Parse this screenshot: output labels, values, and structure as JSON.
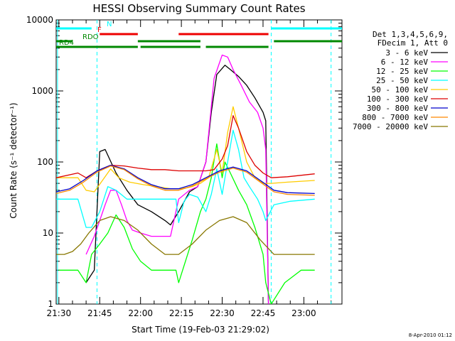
{
  "chart_data": {
    "type": "line",
    "title": "HESSI Observing Summary Count Rates",
    "xlabel": "Start Time (19-Feb-03 21:29:02)",
    "ylabel": "Count Rate (s⁻¹ detector⁻¹)",
    "x_unit": "minutes after 21:29:02",
    "xlim": [
      0,
      105
    ],
    "ylim": [
      1,
      10000
    ],
    "y_scale": "log",
    "x_tick_labels": [
      "21:30",
      "21:45",
      "22:00",
      "22:15",
      "22:30",
      "22:45",
      "23:00"
    ],
    "x_tick_values": [
      1,
      16,
      31,
      46,
      61,
      76,
      91
    ],
    "y_tick_labels": [
      "1",
      "10",
      "100",
      "1000",
      "10000"
    ],
    "y_tick_values": [
      1,
      10,
      100,
      1000,
      10000
    ],
    "legend_header": [
      "Det 1,3,4,5,6,9,",
      "FDecim 1, Att 0"
    ],
    "legend_position": "right",
    "series": [
      {
        "name": "3 - 6 keV",
        "color": "#000000",
        "points": [
          [
            11,
            2
          ],
          [
            14,
            3
          ],
          [
            16,
            140
          ],
          [
            18,
            150
          ],
          [
            22,
            70
          ],
          [
            26,
            40
          ],
          [
            30,
            25
          ],
          [
            35,
            20
          ],
          [
            40,
            15
          ],
          [
            42,
            13
          ],
          [
            45,
            20
          ],
          [
            49,
            38
          ],
          [
            52,
            45
          ],
          [
            55,
            100
          ],
          [
            57,
            500
          ],
          [
            59,
            1700
          ],
          [
            62,
            2300
          ],
          [
            64,
            2000
          ],
          [
            67,
            1600
          ],
          [
            70,
            1200
          ],
          [
            73,
            800
          ],
          [
            76,
            500
          ],
          [
            77,
            380
          ],
          [
            78,
            0.5
          ]
        ]
      },
      {
        "name": "6 - 12 keV",
        "color": "#ff00ff",
        "points": [
          [
            11,
            5
          ],
          [
            14,
            9
          ],
          [
            16,
            15
          ],
          [
            18,
            25
          ],
          [
            20,
            40
          ],
          [
            22,
            40
          ],
          [
            24,
            25
          ],
          [
            26,
            15
          ],
          [
            28,
            11
          ],
          [
            31,
            10
          ],
          [
            35,
            9
          ],
          [
            40,
            9
          ],
          [
            42,
            9
          ],
          [
            45,
            30
          ],
          [
            49,
            40
          ],
          [
            52,
            45
          ],
          [
            55,
            100
          ],
          [
            58,
            1500
          ],
          [
            61,
            3200
          ],
          [
            63,
            3000
          ],
          [
            65,
            2000
          ],
          [
            68,
            1200
          ],
          [
            71,
            700
          ],
          [
            74,
            500
          ],
          [
            76,
            300
          ],
          [
            77,
            150
          ],
          [
            78,
            0.5
          ]
        ]
      },
      {
        "name": "12 - 25 keV",
        "color": "#00ff00",
        "points": [
          [
            1,
            3
          ],
          [
            8,
            3
          ],
          [
            11,
            2
          ],
          [
            13,
            5
          ],
          [
            16,
            7
          ],
          [
            19,
            10
          ],
          [
            22,
            18
          ],
          [
            25,
            12
          ],
          [
            28,
            6
          ],
          [
            31,
            4
          ],
          [
            35,
            3
          ],
          [
            40,
            3
          ],
          [
            44,
            3
          ],
          [
            45,
            2
          ],
          [
            50,
            8
          ],
          [
            53,
            20
          ],
          [
            55,
            30
          ],
          [
            57,
            60
          ],
          [
            59,
            180
          ],
          [
            61,
            60
          ],
          [
            62,
            100
          ],
          [
            64,
            70
          ],
          [
            67,
            40
          ],
          [
            70,
            25
          ],
          [
            73,
            12
          ],
          [
            76,
            5
          ],
          [
            77,
            2
          ],
          [
            79,
            1
          ],
          [
            84,
            2
          ],
          [
            90,
            3
          ],
          [
            95,
            3
          ]
        ]
      },
      {
        "name": "25 - 50 keV",
        "color": "#00ffff",
        "points": [
          [
            0,
            30
          ],
          [
            8,
            30
          ],
          [
            11,
            12
          ],
          [
            13,
            12
          ],
          [
            16,
            20
          ],
          [
            19,
            45
          ],
          [
            22,
            40
          ],
          [
            26,
            30
          ],
          [
            30,
            30
          ],
          [
            35,
            30
          ],
          [
            40,
            30
          ],
          [
            44,
            30
          ],
          [
            45,
            14
          ],
          [
            47,
            28
          ],
          [
            49,
            35
          ],
          [
            52,
            32
          ],
          [
            55,
            20
          ],
          [
            57,
            35
          ],
          [
            59,
            80
          ],
          [
            61,
            35
          ],
          [
            63,
            100
          ],
          [
            65,
            280
          ],
          [
            67,
            150
          ],
          [
            69,
            60
          ],
          [
            71,
            45
          ],
          [
            74,
            30
          ],
          [
            76,
            20
          ],
          [
            77,
            15
          ],
          [
            80,
            25
          ],
          [
            86,
            28
          ],
          [
            95,
            30
          ]
        ]
      },
      {
        "name": "50 - 100 keV",
        "color": "#ffcc00",
        "points": [
          [
            0,
            60
          ],
          [
            8,
            60
          ],
          [
            11,
            40
          ],
          [
            14,
            38
          ],
          [
            17,
            55
          ],
          [
            20,
            80
          ],
          [
            23,
            60
          ],
          [
            27,
            52
          ],
          [
            32,
            48
          ],
          [
            37,
            45
          ],
          [
            42,
            42
          ],
          [
            46,
            42
          ],
          [
            50,
            45
          ],
          [
            53,
            50
          ],
          [
            56,
            60
          ],
          [
            59,
            150
          ],
          [
            61,
            70
          ],
          [
            63,
            260
          ],
          [
            65,
            600
          ],
          [
            67,
            300
          ],
          [
            70,
            100
          ],
          [
            73,
            60
          ],
          [
            76,
            50
          ],
          [
            79,
            50
          ],
          [
            85,
            52
          ],
          [
            95,
            55
          ]
        ]
      },
      {
        "name": "100 - 300 keV",
        "color": "#dd0000",
        "points": [
          [
            0,
            60
          ],
          [
            8,
            70
          ],
          [
            11,
            60
          ],
          [
            15,
            75
          ],
          [
            20,
            90
          ],
          [
            25,
            88
          ],
          [
            30,
            82
          ],
          [
            35,
            78
          ],
          [
            40,
            78
          ],
          [
            45,
            75
          ],
          [
            50,
            75
          ],
          [
            55,
            75
          ],
          [
            58,
            78
          ],
          [
            61,
            110
          ],
          [
            63,
            170
          ],
          [
            65,
            450
          ],
          [
            67,
            300
          ],
          [
            70,
            140
          ],
          [
            73,
            90
          ],
          [
            76,
            70
          ],
          [
            79,
            60
          ],
          [
            85,
            62
          ],
          [
            95,
            68
          ]
        ]
      },
      {
        "name": "300 - 800 keV",
        "color": "#0000cc",
        "points": [
          [
            0,
            38
          ],
          [
            5,
            42
          ],
          [
            10,
            55
          ],
          [
            15,
            75
          ],
          [
            20,
            90
          ],
          [
            25,
            80
          ],
          [
            30,
            60
          ],
          [
            35,
            48
          ],
          [
            40,
            42
          ],
          [
            45,
            42
          ],
          [
            50,
            48
          ],
          [
            55,
            60
          ],
          [
            60,
            75
          ],
          [
            65,
            85
          ],
          [
            70,
            75
          ],
          [
            75,
            55
          ],
          [
            80,
            40
          ],
          [
            85,
            37
          ],
          [
            95,
            36
          ]
        ]
      },
      {
        "name": "800 - 7000 keV",
        "color": "#ff8800",
        "points": [
          [
            0,
            36
          ],
          [
            5,
            40
          ],
          [
            10,
            52
          ],
          [
            15,
            72
          ],
          [
            20,
            88
          ],
          [
            25,
            78
          ],
          [
            30,
            58
          ],
          [
            35,
            46
          ],
          [
            40,
            40
          ],
          [
            45,
            40
          ],
          [
            50,
            46
          ],
          [
            55,
            58
          ],
          [
            60,
            72
          ],
          [
            65,
            82
          ],
          [
            70,
            72
          ],
          [
            75,
            52
          ],
          [
            80,
            38
          ],
          [
            85,
            35
          ],
          [
            95,
            34
          ]
        ]
      },
      {
        "name": "7000 - 20000 keV",
        "color": "#887700",
        "points": [
          [
            0,
            5
          ],
          [
            3,
            5
          ],
          [
            6,
            5.5
          ],
          [
            9,
            7
          ],
          [
            12,
            10
          ],
          [
            16,
            15
          ],
          [
            20,
            17
          ],
          [
            25,
            15
          ],
          [
            30,
            11
          ],
          [
            35,
            7
          ],
          [
            40,
            5
          ],
          [
            45,
            5
          ],
          [
            50,
            7
          ],
          [
            55,
            11
          ],
          [
            60,
            15
          ],
          [
            65,
            17
          ],
          [
            70,
            14
          ],
          [
            75,
            8
          ],
          [
            80,
            5
          ],
          [
            85,
            5
          ],
          [
            95,
            5
          ]
        ]
      }
    ],
    "flag_bars": [
      {
        "label": "N",
        "color": "#00ffff",
        "segments": [
          [
            0,
            13
          ],
          [
            79,
            105
          ]
        ]
      },
      {
        "label": "F",
        "color": "#ee0000",
        "segments": [
          [
            16,
            30
          ],
          [
            45,
            78
          ]
        ]
      },
      {
        "label": "RDO",
        "color": "#008800",
        "segments": [
          [
            0,
            6
          ],
          [
            30,
            53
          ],
          [
            80,
            105
          ]
        ]
      },
      {
        "label": "RD4",
        "color": "#008800",
        "segments": [
          [
            0,
            30
          ],
          [
            31,
            53
          ],
          [
            55,
            78
          ]
        ]
      }
    ],
    "vertical_markers": [
      {
        "x": 15,
        "style": "dashed",
        "color": "#00ffff"
      },
      {
        "x": 79,
        "style": "dashed",
        "color": "#00ffff"
      },
      {
        "x": 101,
        "style": "dashed",
        "color": "#00ffff"
      },
      {
        "x": 0.5,
        "style": "solid",
        "color": "#00ffff"
      }
    ]
  },
  "stamp": "8-Apr-2010 01:12"
}
